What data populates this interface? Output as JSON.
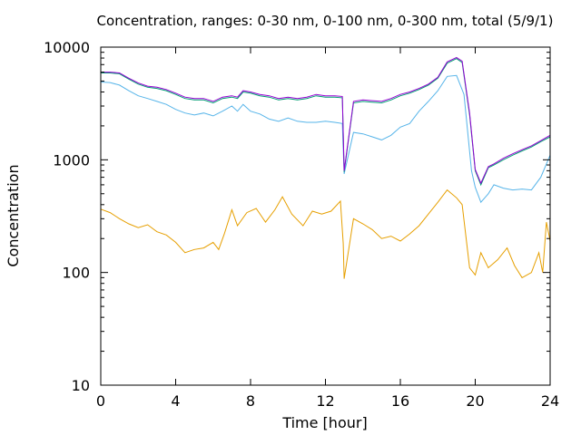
{
  "chart_data": {
    "type": "line",
    "title": "Concentration, ranges: 0-30 nm, 0-100 nm, 0-300 nm, total (5/9/1)",
    "xlabel": "Time [hour]",
    "ylabel": "Concentration",
    "xlim": [
      0,
      24
    ],
    "ylim": [
      10,
      10000
    ],
    "yscale": "log",
    "grid": false,
    "legend": "none",
    "x_ticks": [
      "0",
      "4",
      "8",
      "12",
      "16",
      "20",
      "24"
    ],
    "y_ticks": [
      "10",
      "100",
      "1000",
      "10000"
    ],
    "series": [
      {
        "color": "#e69f00",
        "points": [
          [
            0,
            365
          ],
          [
            0.5,
            340
          ],
          [
            1,
            300
          ],
          [
            1.5,
            270
          ],
          [
            2,
            250
          ],
          [
            2.5,
            265
          ],
          [
            3,
            230
          ],
          [
            3.5,
            215
          ],
          [
            4,
            185
          ],
          [
            4.5,
            150
          ],
          [
            5,
            160
          ],
          [
            5.5,
            165
          ],
          [
            6,
            185
          ],
          [
            6.3,
            160
          ],
          [
            6.6,
            220
          ],
          [
            7,
            360
          ],
          [
            7.3,
            260
          ],
          [
            7.8,
            340
          ],
          [
            8.3,
            370
          ],
          [
            8.8,
            280
          ],
          [
            9.3,
            360
          ],
          [
            9.7,
            470
          ],
          [
            10.2,
            330
          ],
          [
            10.8,
            260
          ],
          [
            11.3,
            350
          ],
          [
            11.8,
            330
          ],
          [
            12.3,
            350
          ],
          [
            12.8,
            430
          ],
          [
            12.95,
            180
          ],
          [
            13.0,
            88
          ],
          [
            13.5,
            300
          ],
          [
            14,
            270
          ],
          [
            14.5,
            240
          ],
          [
            15,
            200
          ],
          [
            15.5,
            210
          ],
          [
            16,
            190
          ],
          [
            16.5,
            220
          ],
          [
            17,
            260
          ],
          [
            17.5,
            330
          ],
          [
            18,
            420
          ],
          [
            18.5,
            540
          ],
          [
            19,
            460
          ],
          [
            19.3,
            400
          ],
          [
            19.7,
            110
          ],
          [
            20,
            95
          ],
          [
            20.3,
            150
          ],
          [
            20.7,
            110
          ],
          [
            21.2,
            130
          ],
          [
            21.7,
            165
          ],
          [
            22.1,
            115
          ],
          [
            22.5,
            90
          ],
          [
            23,
            100
          ],
          [
            23.4,
            150
          ],
          [
            23.6,
            100
          ],
          [
            23.8,
            280
          ],
          [
            24,
            190
          ]
        ]
      },
      {
        "color": "#56b4e9",
        "points": [
          [
            0,
            4900
          ],
          [
            0.5,
            4850
          ],
          [
            1,
            4600
          ],
          [
            1.5,
            4100
          ],
          [
            2,
            3700
          ],
          [
            2.5,
            3500
          ],
          [
            3,
            3300
          ],
          [
            3.5,
            3100
          ],
          [
            4,
            2800
          ],
          [
            4.5,
            2600
          ],
          [
            5,
            2500
          ],
          [
            5.5,
            2600
          ],
          [
            6,
            2450
          ],
          [
            6.5,
            2700
          ],
          [
            7,
            3000
          ],
          [
            7.3,
            2700
          ],
          [
            7.6,
            3100
          ],
          [
            8,
            2700
          ],
          [
            8.5,
            2550
          ],
          [
            9,
            2300
          ],
          [
            9.5,
            2200
          ],
          [
            10,
            2350
          ],
          [
            10.5,
            2200
          ],
          [
            11,
            2150
          ],
          [
            11.5,
            2150
          ],
          [
            12,
            2200
          ],
          [
            12.5,
            2150
          ],
          [
            12.9,
            2100
          ],
          [
            13.0,
            750
          ],
          [
            13.5,
            1750
          ],
          [
            14,
            1700
          ],
          [
            14.5,
            1600
          ],
          [
            15,
            1500
          ],
          [
            15.5,
            1650
          ],
          [
            16,
            1950
          ],
          [
            16.5,
            2100
          ],
          [
            17,
            2700
          ],
          [
            17.5,
            3300
          ],
          [
            18,
            4100
          ],
          [
            18.5,
            5500
          ],
          [
            19,
            5600
          ],
          [
            19.4,
            3800
          ],
          [
            19.8,
            800
          ],
          [
            20,
            570
          ],
          [
            20.3,
            420
          ],
          [
            20.7,
            500
          ],
          [
            21,
            600
          ],
          [
            21.5,
            560
          ],
          [
            22,
            540
          ],
          [
            22.5,
            550
          ],
          [
            23,
            540
          ],
          [
            23.5,
            700
          ],
          [
            24,
            1100
          ]
        ]
      },
      {
        "color": "#009e73",
        "points": [
          [
            0,
            5900
          ],
          [
            0.5,
            5900
          ],
          [
            1,
            5800
          ],
          [
            1.5,
            5200
          ],
          [
            2,
            4700
          ],
          [
            2.5,
            4400
          ],
          [
            3,
            4300
          ],
          [
            3.5,
            4100
          ],
          [
            4,
            3800
          ],
          [
            4.5,
            3500
          ],
          [
            5,
            3400
          ],
          [
            5.5,
            3400
          ],
          [
            6,
            3200
          ],
          [
            6.5,
            3500
          ],
          [
            7,
            3600
          ],
          [
            7.3,
            3500
          ],
          [
            7.6,
            4000
          ],
          [
            8,
            3900
          ],
          [
            8.5,
            3700
          ],
          [
            9,
            3600
          ],
          [
            9.5,
            3400
          ],
          [
            10,
            3500
          ],
          [
            10.5,
            3400
          ],
          [
            11,
            3500
          ],
          [
            11.5,
            3700
          ],
          [
            12,
            3600
          ],
          [
            12.5,
            3600
          ],
          [
            12.9,
            3550
          ],
          [
            13.0,
            780
          ],
          [
            13.5,
            3200
          ],
          [
            14,
            3300
          ],
          [
            14.5,
            3250
          ],
          [
            15,
            3200
          ],
          [
            15.5,
            3400
          ],
          [
            16,
            3700
          ],
          [
            16.5,
            3900
          ],
          [
            17,
            4200
          ],
          [
            17.5,
            4600
          ],
          [
            18,
            5300
          ],
          [
            18.5,
            7200
          ],
          [
            19,
            7900
          ],
          [
            19.3,
            7300
          ],
          [
            19.7,
            2500
          ],
          [
            20,
            800
          ],
          [
            20.3,
            600
          ],
          [
            20.7,
            850
          ],
          [
            21,
            900
          ],
          [
            21.5,
            1000
          ],
          [
            22,
            1100
          ],
          [
            22.5,
            1200
          ],
          [
            23,
            1300
          ],
          [
            23.5,
            1450
          ],
          [
            24,
            1600
          ]
        ]
      },
      {
        "color": "#9400d3",
        "points": [
          [
            0,
            6000
          ],
          [
            0.5,
            6000
          ],
          [
            1,
            5900
          ],
          [
            1.5,
            5300
          ],
          [
            2,
            4800
          ],
          [
            2.5,
            4500
          ],
          [
            3,
            4400
          ],
          [
            3.5,
            4200
          ],
          [
            4,
            3900
          ],
          [
            4.5,
            3600
          ],
          [
            5,
            3500
          ],
          [
            5.5,
            3500
          ],
          [
            6,
            3300
          ],
          [
            6.5,
            3600
          ],
          [
            7,
            3700
          ],
          [
            7.3,
            3600
          ],
          [
            7.6,
            4100
          ],
          [
            8,
            4000
          ],
          [
            8.5,
            3800
          ],
          [
            9,
            3700
          ],
          [
            9.5,
            3500
          ],
          [
            10,
            3600
          ],
          [
            10.5,
            3500
          ],
          [
            11,
            3600
          ],
          [
            11.5,
            3800
          ],
          [
            12,
            3700
          ],
          [
            12.5,
            3700
          ],
          [
            12.9,
            3650
          ],
          [
            13.0,
            800
          ],
          [
            13.5,
            3300
          ],
          [
            14,
            3400
          ],
          [
            14.5,
            3350
          ],
          [
            15,
            3300
          ],
          [
            15.5,
            3500
          ],
          [
            16,
            3800
          ],
          [
            16.5,
            4000
          ],
          [
            17,
            4300
          ],
          [
            17.5,
            4700
          ],
          [
            18,
            5400
          ],
          [
            18.5,
            7400
          ],
          [
            19,
            8100
          ],
          [
            19.3,
            7500
          ],
          [
            19.7,
            2600
          ],
          [
            20,
            820
          ],
          [
            20.3,
            620
          ],
          [
            20.7,
            870
          ],
          [
            21,
            920
          ],
          [
            21.5,
            1030
          ],
          [
            22,
            1130
          ],
          [
            22.5,
            1230
          ],
          [
            23,
            1330
          ],
          [
            23.5,
            1480
          ],
          [
            24,
            1650
          ]
        ]
      }
    ]
  }
}
